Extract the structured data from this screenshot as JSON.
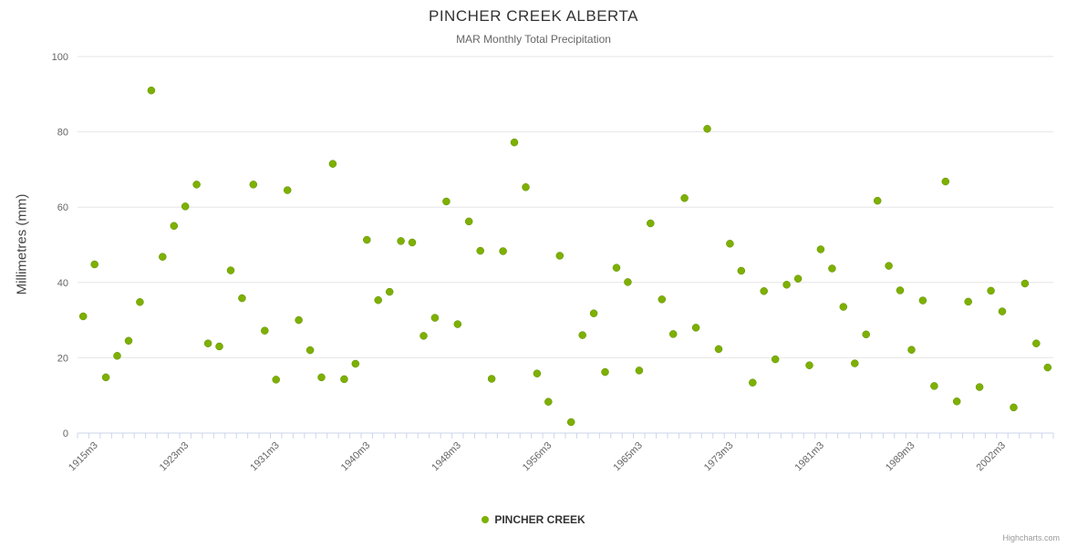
{
  "title": "PINCHER CREEK ALBERTA",
  "subtitle": "MAR Monthly Total Precipitation",
  "y_axis_title": "Millimetres (mm)",
  "legend": {
    "label": "PINCHER CREEK"
  },
  "credits": "Highcharts.com",
  "colors": {
    "marker": "#7db000",
    "marker_stroke": "#5f8c00",
    "gridline": "#e6e6e6",
    "axis_line": "#ccd6eb"
  },
  "chart_data": {
    "type": "scatter",
    "title": "PINCHER CREEK ALBERTA",
    "subtitle": "MAR Monthly Total Precipitation",
    "xlabel": "",
    "ylabel": "Millimetres (mm)",
    "ylim": [
      0,
      100
    ],
    "y_ticks": [
      0,
      20,
      40,
      60,
      80,
      100
    ],
    "grid": "horizontal",
    "legend_position": "bottom",
    "x_tick_labels": [
      {
        "index": 1,
        "label": "1915m3"
      },
      {
        "index": 9,
        "label": "1923m3"
      },
      {
        "index": 17,
        "label": "1931m3"
      },
      {
        "index": 25,
        "label": "1940m3"
      },
      {
        "index": 33,
        "label": "1948m3"
      },
      {
        "index": 41,
        "label": "1956m3"
      },
      {
        "index": 49,
        "label": "1965m3"
      },
      {
        "index": 57,
        "label": "1973m3"
      },
      {
        "index": 65,
        "label": "1981m3"
      },
      {
        "index": 73,
        "label": "1989m3"
      },
      {
        "index": 81,
        "label": "2002m3"
      }
    ],
    "series": [
      {
        "name": "PINCHER CREEK",
        "values": [
          31.0,
          44.8,
          14.8,
          20.5,
          24.5,
          34.8,
          91.0,
          46.8,
          55.0,
          60.2,
          66.0,
          23.8,
          23.0,
          43.2,
          35.8,
          66.0,
          27.2,
          14.2,
          64.5,
          30.0,
          22.0,
          14.8,
          71.5,
          14.3,
          18.4,
          51.3,
          35.3,
          37.5,
          51.0,
          50.6,
          25.8,
          30.6,
          61.5,
          28.9,
          56.2,
          48.4,
          14.4,
          48.3,
          77.2,
          65.3,
          15.8,
          8.3,
          47.1,
          2.9,
          26.0,
          31.8,
          16.2,
          43.9,
          40.1,
          16.6,
          55.7,
          35.5,
          26.3,
          62.4,
          28.0,
          80.8,
          22.3,
          50.3,
          43.1,
          13.4,
          37.7,
          19.6,
          39.4,
          41.0,
          18.0,
          48.8,
          43.7,
          33.5,
          18.5,
          26.2,
          61.7,
          44.4,
          37.9,
          22.1,
          35.2,
          12.5,
          66.8,
          8.4,
          34.9,
          12.2,
          37.8,
          32.3,
          6.8,
          39.7,
          23.8,
          17.4
        ]
      }
    ]
  }
}
